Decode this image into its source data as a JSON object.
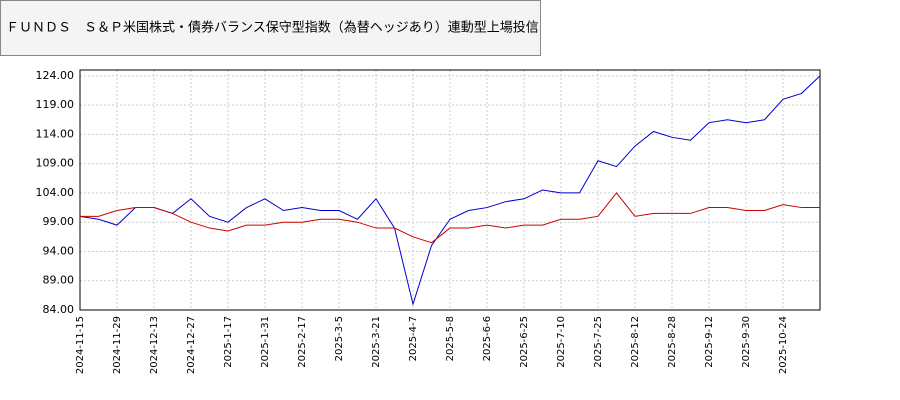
{
  "chart_data": {
    "type": "line",
    "title": "ＦＵＮＤＳ　Ｓ＆Ｐ米国株式・債券バランス保守型指数（為替ヘッジあり）連動型上場投信",
    "categories": [
      "2024-11-15",
      null,
      "2024-11-29",
      null,
      "2024-12-13",
      null,
      "2024-12-27",
      null,
      "2025-1-17",
      null,
      "2025-1-31",
      null,
      "2025-2-17",
      null,
      "2025-3-5",
      null,
      "2025-3-21",
      null,
      "2025-4-7",
      null,
      "2025-5-8",
      null,
      "2025-6-6",
      null,
      "2025-6-25",
      null,
      "2025-7-10",
      null,
      "2025-7-25",
      null,
      "2025-8-12",
      null,
      "2025-8-28",
      null,
      "2025-9-12",
      null,
      "2025-9-30",
      null,
      "2025-10-24",
      null,
      null
    ],
    "series": [
      {
        "color": "#0000cc",
        "values": [
          100,
          99.5,
          98.5,
          101.5,
          101.5,
          100.5,
          103,
          100,
          99,
          101.5,
          103,
          101,
          101.5,
          101,
          101,
          99.5,
          103,
          98,
          85,
          95,
          99.5,
          101,
          101.5,
          102.5,
          103,
          104.5,
          104,
          104,
          109.5,
          108.5,
          112,
          114.5,
          113.5,
          113,
          116,
          116.5,
          116,
          116.5,
          120,
          121,
          124
        ]
      },
      {
        "color": "#cc0000",
        "values": [
          100,
          100,
          101,
          101.5,
          101.5,
          100.5,
          99,
          98,
          97.5,
          98.5,
          98.5,
          99,
          99,
          99.5,
          99.5,
          99,
          98,
          98,
          96.5,
          95.5,
          98,
          98,
          98.5,
          98,
          98.5,
          98.5,
          99.5,
          99.5,
          100,
          104,
          100,
          100.5,
          100.5,
          100.5,
          101.5,
          101.5,
          101,
          101,
          102,
          101.5,
          101.5
        ]
      }
    ],
    "ylim": [
      84,
      125
    ],
    "yticks": [
      {
        "value": 84,
        "label": "84.00"
      },
      {
        "value": 89,
        "label": "89.00"
      },
      {
        "value": 94,
        "label": "94.00"
      },
      {
        "value": 99,
        "label": "99.00"
      },
      {
        "value": 104,
        "label": "104.00"
      },
      {
        "value": 109,
        "label": "109.00"
      },
      {
        "value": 114,
        "label": "114.00"
      },
      {
        "value": 119,
        "label": "119.00"
      },
      {
        "value": 124,
        "label": "124.00"
      }
    ],
    "grid": true
  }
}
